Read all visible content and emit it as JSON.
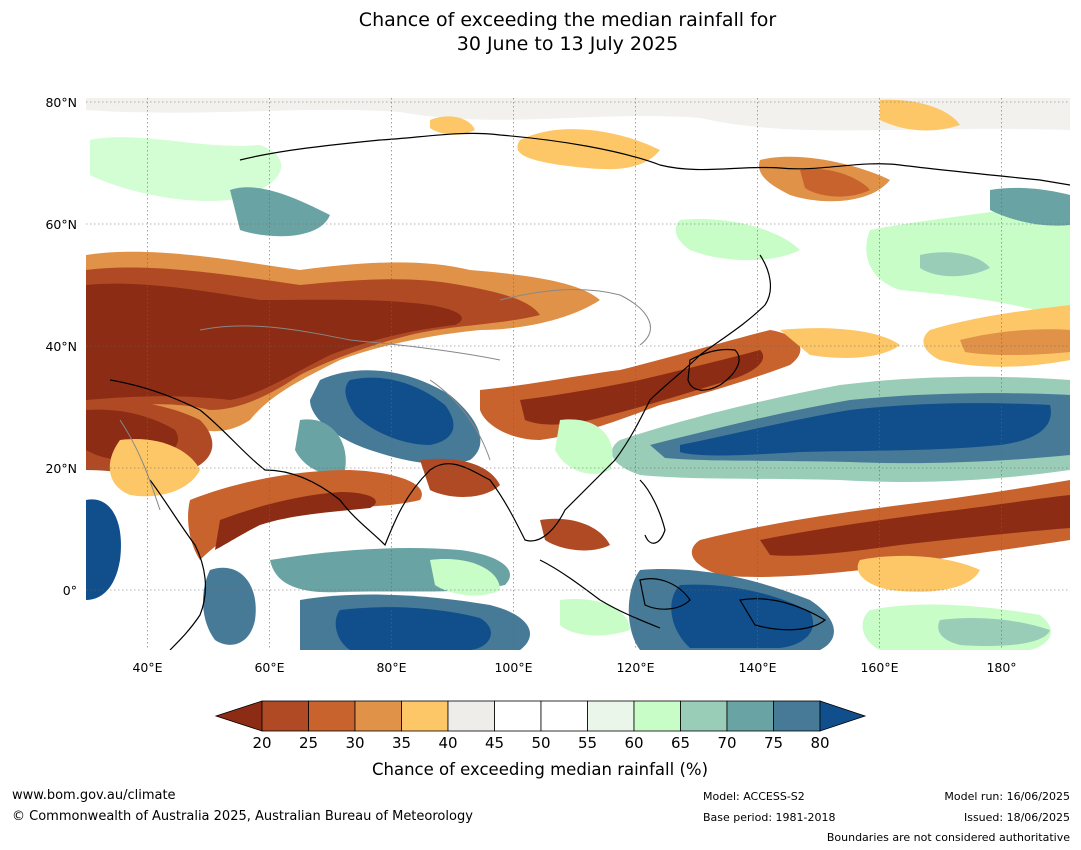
{
  "title_line1": "Chance of exceeding the median rainfall for",
  "title_line2": "30 June to 13 July 2025",
  "map": {
    "lat_labels": [
      "80°N",
      "60°N",
      "40°N",
      "20°N",
      "0°"
    ],
    "lon_labels": [
      "40°E",
      "60°E",
      "80°E",
      "100°E",
      "120°E",
      "140°E",
      "160°E",
      "180°"
    ],
    "lon_range": [
      30,
      190
    ],
    "lat_range": [
      -10,
      80
    ]
  },
  "legend": {
    "title": "Chance of exceeding median rainfall (%)",
    "ticks": [
      "20",
      "25",
      "30",
      "35",
      "40",
      "45",
      "50",
      "55",
      "60",
      "65",
      "70",
      "75",
      "80"
    ],
    "colors": [
      "#8c2c14",
      "#b04a24",
      "#c8632e",
      "#e09248",
      "#fdc767",
      "#efedea",
      "#ffffff",
      "#ffffff",
      "#ebf6ea",
      "#c8fdc8",
      "#9acdb8",
      "#6aa3a3",
      "#477a96",
      "#104f8c"
    ]
  },
  "footer": {
    "url": "www.bom.gov.au/climate",
    "copyright": "© Commonwealth of Australia 2025, Australian Bureau of Meteorology",
    "model": "Model: ACCESS-S2",
    "base_period": "Base period: 1981-2018",
    "model_run": "Model run: 16/06/2025",
    "issued": "Issued: 18/06/2025",
    "disclaimer": "Boundaries are not considered authoritative"
  }
}
